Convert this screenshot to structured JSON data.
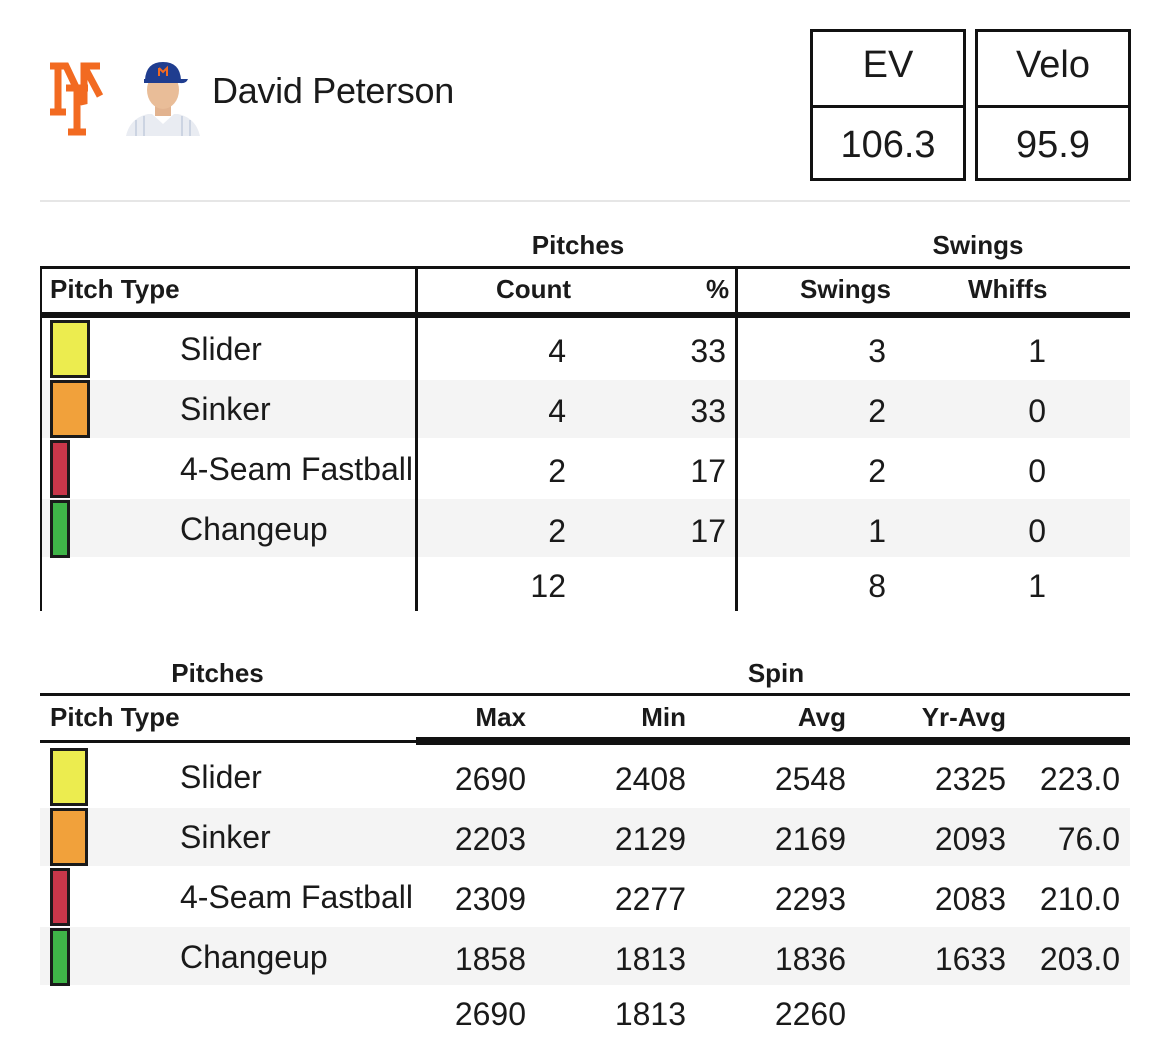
{
  "player": {
    "name": "David Peterson",
    "team_logo": "ny-mets-logo",
    "logo_color": "#f26a21",
    "headshot": "player-headshot"
  },
  "stats": [
    {
      "label": "EV",
      "value": "106.3"
    },
    {
      "label": "Velo",
      "value": "95.9"
    }
  ],
  "pitch_colors": {
    "Slider": "#ecec4f",
    "Sinker": "#f1a13b",
    "4-Seam Fastball": "#c9374a",
    "Changeup": "#3fb548"
  },
  "table1": {
    "group_pitches": "Pitches",
    "group_swings": "Swings",
    "col_type": "Pitch Type",
    "col_count": "Count",
    "col_pct": "%",
    "col_swings": "Swings",
    "col_whiffs": "Whiffs",
    "rows": [
      {
        "type": "Slider",
        "count": "4",
        "pct": "33",
        "swings": "3",
        "whiffs": "1"
      },
      {
        "type": "Sinker",
        "count": "4",
        "pct": "33",
        "swings": "2",
        "whiffs": "0"
      },
      {
        "type": "4-Seam Fastball",
        "count": "2",
        "pct": "17",
        "swings": "2",
        "whiffs": "0"
      },
      {
        "type": "Changeup",
        "count": "2",
        "pct": "17",
        "swings": "1",
        "whiffs": "0"
      }
    ],
    "totals": {
      "count": "12",
      "swings": "8",
      "whiffs": "1"
    }
  },
  "table2": {
    "group_pitches": "Pitches",
    "group_spin": "Spin",
    "col_type": "Pitch Type",
    "col_max": "Max",
    "col_min": "Min",
    "col_avg": "Avg",
    "col_yravg": "Yr-Avg",
    "rows": [
      {
        "type": "Slider",
        "max": "2690",
        "min": "2408",
        "avg": "2548",
        "yravg": "2325",
        "diff": "223.0"
      },
      {
        "type": "Sinker",
        "max": "2203",
        "min": "2129",
        "avg": "2169",
        "yravg": "2093",
        "diff": "76.0"
      },
      {
        "type": "4-Seam Fastball",
        "max": "2309",
        "min": "2277",
        "avg": "2293",
        "yravg": "2083",
        "diff": "210.0"
      },
      {
        "type": "Changeup",
        "max": "1858",
        "min": "1813",
        "avg": "1836",
        "yravg": "1633",
        "diff": "203.0"
      }
    ],
    "totals": {
      "max": "2690",
      "min": "1813",
      "avg": "2260"
    }
  }
}
